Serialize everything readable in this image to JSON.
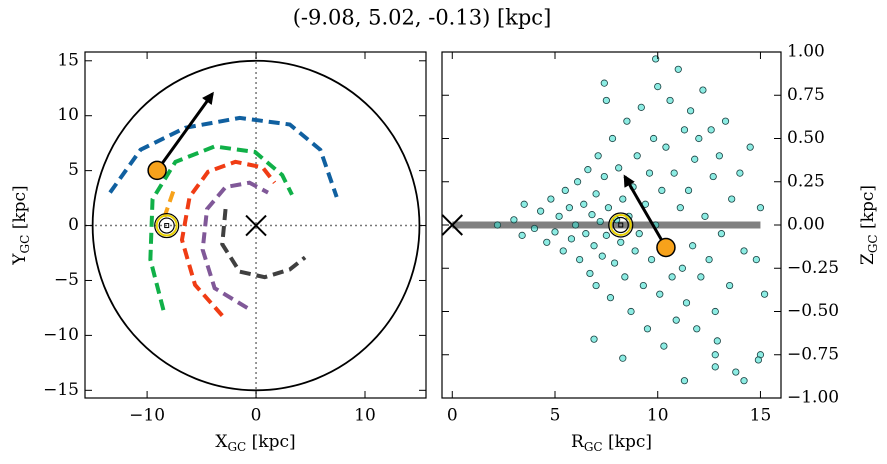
{
  "title": "(-9.08, 5.02, -0.13) [kpc]",
  "chart_data": [
    {
      "type": "line",
      "xlabel": {
        "main": "X",
        "sub": "GC",
        "unit": " [kpc]"
      },
      "ylabel": {
        "main": "Y",
        "sub": "GC",
        "unit": " [kpc]"
      },
      "xlim": [
        -15.7,
        15.6
      ],
      "ylim": [
        -15.7,
        15.8
      ],
      "xticks": [
        {
          "value": -10,
          "label": "−10"
        },
        0,
        10
      ],
      "yticks": [
        {
          "value": -15,
          "label": "−15"
        },
        {
          "value": -10,
          "label": "−10"
        },
        {
          "value": -5,
          "label": "−5"
        },
        0,
        5,
        10,
        15
      ],
      "boundary_radius": 15,
      "series": [
        {
          "color": "#1060a0",
          "x": [
            -13.4,
            -10.6,
            -6.5,
            -1.5,
            3.1,
            5.9,
            7.4
          ],
          "values": [
            3.0,
            6.9,
            8.9,
            9.8,
            9.2,
            6.9,
            2.6
          ]
        },
        {
          "color": "#10b048",
          "x": [
            -8.5,
            -9.7,
            -9.5,
            -7.4,
            -3.8,
            -0.1,
            2.4,
            3.3
          ],
          "values": [
            -7.7,
            -3.1,
            2.4,
            5.8,
            7.2,
            6.7,
            4.6,
            2.8
          ]
        },
        {
          "color": "#f03c14",
          "x": [
            -3.1,
            -5.6,
            -6.8,
            -6.1,
            -4.4,
            -1.9,
            0.6,
            1.7
          ],
          "values": [
            -8.2,
            -5.4,
            -1.3,
            2.6,
            4.9,
            5.8,
            5.3,
            3.9
          ]
        },
        {
          "color": "#805898",
          "x": [
            -0.8,
            -3.8,
            -4.9,
            -4.5,
            -2.8,
            -0.6,
            1.1
          ],
          "values": [
            -7.5,
            -5.7,
            -2.2,
            1.5,
            3.5,
            3.9,
            3.0
          ]
        },
        {
          "color": "#404040",
          "x": [
            -2.8,
            -3.1,
            -1.5,
            0.8,
            3.1,
            4.5
          ],
          "values": [
            1.5,
            -1.7,
            -4.2,
            -4.7,
            -4.0,
            -2.9
          ]
        },
        {
          "color": "#f7a21b",
          "x": [
            -7.6,
            -8.4
          ],
          "values": [
            3.1,
            0.8
          ]
        }
      ],
      "position": {
        "x": -9.08,
        "y": 5.02,
        "color": "#f7a21b"
      },
      "arrow": {
        "x": [
          -9.08,
          -4.0
        ],
        "y": [
          5.02,
          12.0
        ]
      },
      "sun": {
        "x": -8.2,
        "y": 0
      },
      "center": {
        "x": 0,
        "y": 0
      }
    },
    {
      "type": "scatter",
      "xlabel": {
        "main": "R",
        "sub": "GC",
        "unit": " [kpc]"
      },
      "ylabel": {
        "main": "Z",
        "sub": "GC",
        "unit": " [kpc]"
      },
      "xlim": [
        -0.5,
        16.0
      ],
      "ylim": [
        -1.0,
        1.0
      ],
      "xticks": [
        0,
        5,
        10,
        15
      ],
      "yticks": [
        {
          "value": -1.0,
          "label": "−1.00"
        },
        {
          "value": -0.75,
          "label": "−0.75"
        },
        {
          "value": -0.5,
          "label": "−0.50"
        },
        {
          "value": -0.25,
          "label": "−0.25"
        },
        {
          "value": 0,
          "label": "0.00"
        },
        {
          "value": 0.25,
          "label": "0.25"
        },
        {
          "value": 0.5,
          "label": "0.50"
        },
        {
          "value": 0.75,
          "label": "0.75"
        },
        {
          "value": 1.0,
          "label": "1.00"
        }
      ],
      "color": "#40e0d0",
      "x": [
        2.2,
        3.0,
        3.4,
        3.5,
        4.0,
        4.3,
        4.6,
        4.8,
        5.0,
        5.2,
        5.4,
        5.5,
        5.7,
        5.8,
        6.0,
        6.1,
        6.2,
        6.4,
        6.5,
        6.6,
        6.7,
        6.8,
        6.9,
        7.0,
        7.0,
        7.1,
        7.2,
        7.3,
        7.4,
        7.5,
        7.6,
        7.7,
        7.8,
        7.9,
        8.0,
        8.1,
        8.2,
        8.3,
        8.4,
        8.5,
        8.6,
        8.7,
        8.8,
        8.9,
        9.0,
        9.1,
        9.2,
        9.3,
        9.4,
        9.5,
        9.6,
        9.7,
        9.8,
        9.9,
        10.0,
        10.1,
        10.2,
        10.3,
        10.4,
        10.5,
        10.6,
        10.7,
        10.8,
        10.9,
        11.0,
        11.1,
        11.2,
        11.3,
        11.4,
        11.5,
        11.6,
        11.7,
        11.8,
        11.9,
        12.0,
        12.1,
        12.2,
        12.3,
        12.5,
        12.6,
        12.7,
        12.8,
        13.0,
        13.1,
        13.3,
        13.5,
        13.6,
        14.0,
        14.2,
        14.5,
        14.8,
        15.0,
        15.2,
        12.9,
        11.3,
        12.8,
        14.2,
        15.0,
        13.8,
        9.9,
        7.4,
        7.5,
        6.9,
        8.3,
        12.8,
        14.9
      ],
      "values": [
        0.0,
        0.03,
        -0.06,
        0.12,
        -0.02,
        0.08,
        -0.1,
        0.15,
        -0.04,
        0.05,
        -0.15,
        0.2,
        0.1,
        -0.08,
        0.0,
        0.25,
        -0.2,
        0.12,
        -0.05,
        0.32,
        -0.28,
        0.06,
        -0.12,
        0.18,
        -0.35,
        0.4,
        0.02,
        -0.18,
        0.28,
        -0.06,
        0.1,
        -0.42,
        0.5,
        -0.22,
        0.03,
        0.33,
        -0.1,
        0.15,
        -0.3,
        0.6,
        0.05,
        -0.5,
        0.22,
        -0.15,
        0.4,
        -0.05,
        0.68,
        -0.35,
        0.12,
        -0.6,
        0.3,
        -0.2,
        0.5,
        0.0,
        0.8,
        -0.4,
        0.2,
        -0.7,
        0.45,
        -0.1,
        0.72,
        -0.3,
        0.3,
        -0.55,
        0.9,
        0.1,
        -0.25,
        0.55,
        -0.45,
        0.2,
        0.66,
        -0.12,
        0.38,
        -0.6,
        0.5,
        -0.3,
        0.78,
        0.05,
        -0.2,
        0.55,
        0.28,
        -0.5,
        0.4,
        -0.05,
        0.6,
        -0.35,
        0.15,
        0.3,
        -0.15,
        0.45,
        -0.2,
        0.1,
        -0.4,
        -0.67,
        -0.9,
        -0.75,
        -0.9,
        -0.75,
        -0.85,
        0.96,
        0.82,
        0.72,
        -0.66,
        -0.77,
        -0.82,
        -0.78
      ],
      "midplane": {
        "x": [
          0,
          15
        ],
        "y": [
          0,
          0
        ],
        "color": "#808080"
      },
      "position": {
        "x": 10.4,
        "y": -0.13,
        "color": "#f7a21b"
      },
      "arrow": {
        "x": [
          10.4,
          8.4
        ],
        "y": [
          -0.13,
          0.28
        ]
      },
      "sun": {
        "x": 8.2,
        "y": 0
      },
      "center": {
        "x": 0,
        "y": 0
      }
    }
  ]
}
